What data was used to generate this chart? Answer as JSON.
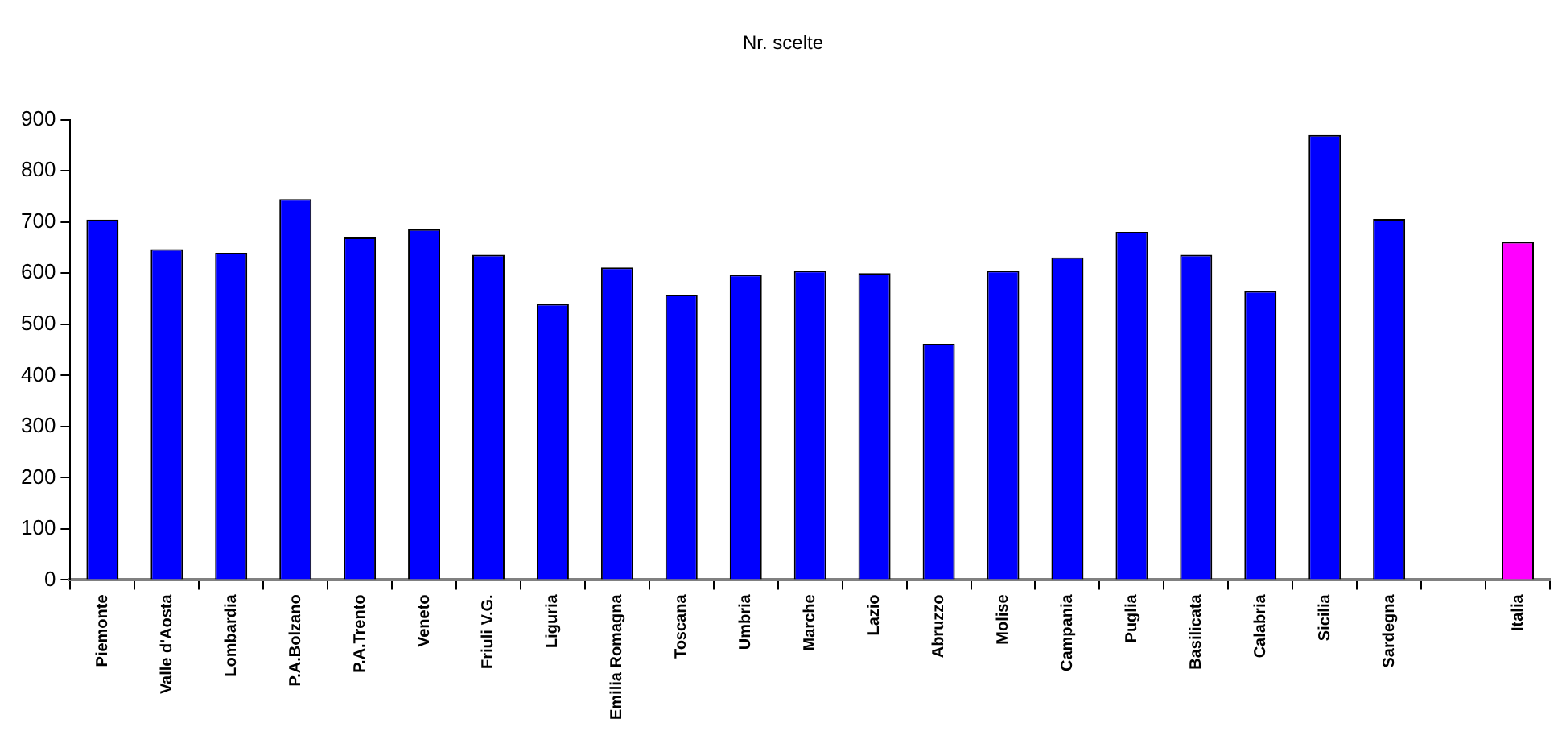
{
  "chart_data": {
    "type": "bar",
    "title": "Nr. scelte",
    "categories": [
      "Piemonte",
      "Valle d'Aosta",
      "Lombardia",
      "P.A.Bolzano",
      "P.A.Trento",
      "Veneto",
      "Friuli V.G.",
      "Liguria",
      "Emilia Romagna",
      "Toscana",
      "Umbria",
      "Marche",
      "Lazio",
      "Abruzzo",
      "Molise",
      "Campania",
      "Puglia",
      "Basilicata",
      "Calabria",
      "Sicilia",
      "Sardegna",
      null,
      "Italia"
    ],
    "values": [
      705,
      647,
      640,
      745,
      670,
      686,
      636,
      540,
      611,
      558,
      597,
      605,
      600,
      462,
      605,
      631,
      681,
      636,
      565,
      870,
      706,
      null,
      661
    ],
    "colors": [
      "#0000ff",
      "#0000ff",
      "#0000ff",
      "#0000ff",
      "#0000ff",
      "#0000ff",
      "#0000ff",
      "#0000ff",
      "#0000ff",
      "#0000ff",
      "#0000ff",
      "#0000ff",
      "#0000ff",
      "#0000ff",
      "#0000ff",
      "#0000ff",
      "#0000ff",
      "#0000ff",
      "#0000ff",
      "#0000ff",
      "#0000ff",
      "#0000ff",
      "#ff00ff"
    ],
    "ylim": [
      0,
      900
    ],
    "yticks": [
      0,
      100,
      200,
      300,
      400,
      500,
      600,
      700,
      800,
      900
    ],
    "grid": false,
    "legend": false
  }
}
